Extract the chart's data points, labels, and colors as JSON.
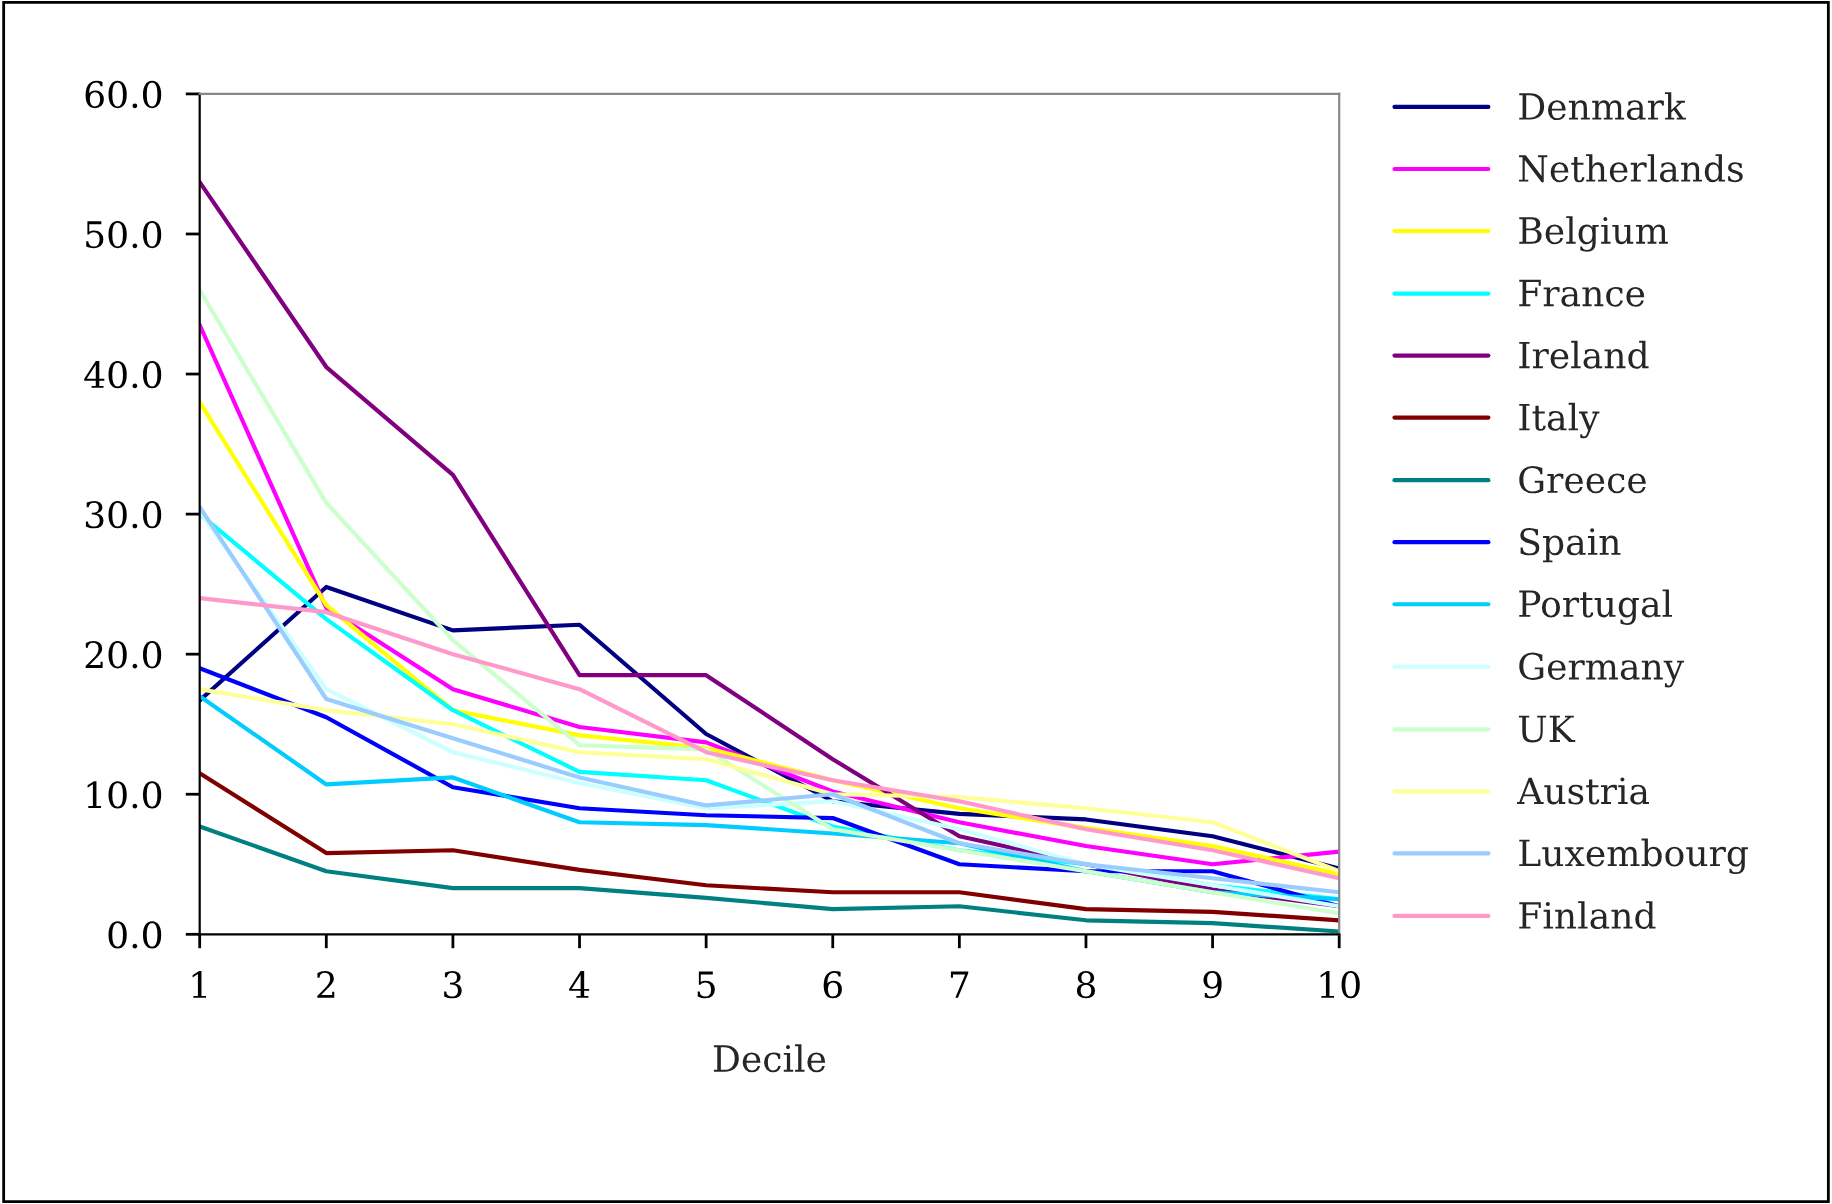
{
  "chart_data": {
    "type": "line",
    "xlabel": "Decile",
    "x": [
      1,
      2,
      3,
      4,
      5,
      6,
      7,
      8,
      9,
      10
    ],
    "xlim": [
      1,
      10
    ],
    "xticks": [
      1,
      2,
      3,
      4,
      5,
      6,
      7,
      8,
      9,
      10
    ],
    "ylim": [
      0,
      60
    ],
    "yticks": [
      {
        "value": 0,
        "label": "0.0"
      },
      {
        "value": 10,
        "label": "10.0"
      },
      {
        "value": 20,
        "label": "20.0"
      },
      {
        "value": 30,
        "label": "30.0"
      },
      {
        "value": 40,
        "label": "40.0"
      },
      {
        "value": 50,
        "label": "50.0"
      },
      {
        "value": 60,
        "label": "60.0"
      }
    ],
    "grid": false,
    "legend": "right",
    "marker": "none",
    "line_style": "solid",
    "series": [
      {
        "name": "Denmark",
        "color": "#000080",
        "values": [
          16.7,
          24.8,
          21.7,
          22.1,
          14.3,
          9.5,
          8.6,
          8.2,
          7.0,
          4.7
        ]
      },
      {
        "name": "Netherlands",
        "color": "#ff00ff",
        "values": [
          43.5,
          23.3,
          17.5,
          14.8,
          13.7,
          10.2,
          8.0,
          6.3,
          5.0,
          5.9
        ]
      },
      {
        "name": "Belgium",
        "color": "#ffff00",
        "values": [
          38.0,
          23.5,
          16.0,
          14.2,
          13.3,
          11.0,
          9.0,
          7.6,
          6.3,
          4.3
        ]
      },
      {
        "name": "France",
        "color": "#00ffff",
        "values": [
          30.0,
          22.5,
          16.0,
          11.6,
          11.0,
          7.7,
          6.0,
          5.0,
          3.5,
          2.5
        ]
      },
      {
        "name": "Ireland",
        "color": "#800080",
        "values": [
          53.7,
          40.5,
          32.8,
          18.5,
          18.5,
          12.5,
          7.0,
          5.0,
          3.2,
          2.0
        ]
      },
      {
        "name": "Italy",
        "color": "#800000",
        "values": [
          11.5,
          5.8,
          6.0,
          4.6,
          3.5,
          3.0,
          3.0,
          1.8,
          1.6,
          1.0
        ]
      },
      {
        "name": "Greece",
        "color": "#008080",
        "values": [
          7.7,
          4.5,
          3.3,
          3.3,
          2.6,
          1.8,
          2.0,
          1.0,
          0.8,
          0.2
        ]
      },
      {
        "name": "Spain",
        "color": "#0000ff",
        "values": [
          19.0,
          15.5,
          10.5,
          9.0,
          8.5,
          8.3,
          5.0,
          4.5,
          4.5,
          2.0
        ]
      },
      {
        "name": "Portugal",
        "color": "#00ccff",
        "values": [
          17.0,
          10.7,
          11.2,
          8.0,
          7.8,
          7.2,
          6.5,
          4.5,
          3.0,
          2.5
        ]
      },
      {
        "name": "Germany",
        "color": "#ccffff",
        "values": [
          30.2,
          17.5,
          13.0,
          10.8,
          9.0,
          9.5,
          7.5,
          5.0,
          3.5,
          2.0
        ]
      },
      {
        "name": "UK",
        "color": "#ccffcc",
        "values": [
          46.0,
          30.8,
          21.0,
          13.5,
          13.2,
          7.5,
          6.0,
          4.5,
          3.0,
          1.5
        ]
      },
      {
        "name": "Austria",
        "color": "#ffff99",
        "values": [
          17.5,
          16.0,
          15.0,
          13.0,
          12.5,
          10.0,
          9.8,
          9.0,
          8.0,
          4.5
        ]
      },
      {
        "name": "Luxembourg",
        "color": "#99ccff",
        "values": [
          30.5,
          16.8,
          14.0,
          11.2,
          9.2,
          10.0,
          6.5,
          5.0,
          4.0,
          3.0
        ]
      },
      {
        "name": "Finland",
        "color": "#ff99cc",
        "values": [
          24.0,
          23.0,
          20.0,
          17.5,
          13.0,
          11.0,
          9.5,
          7.5,
          6.0,
          4.0
        ]
      }
    ]
  }
}
